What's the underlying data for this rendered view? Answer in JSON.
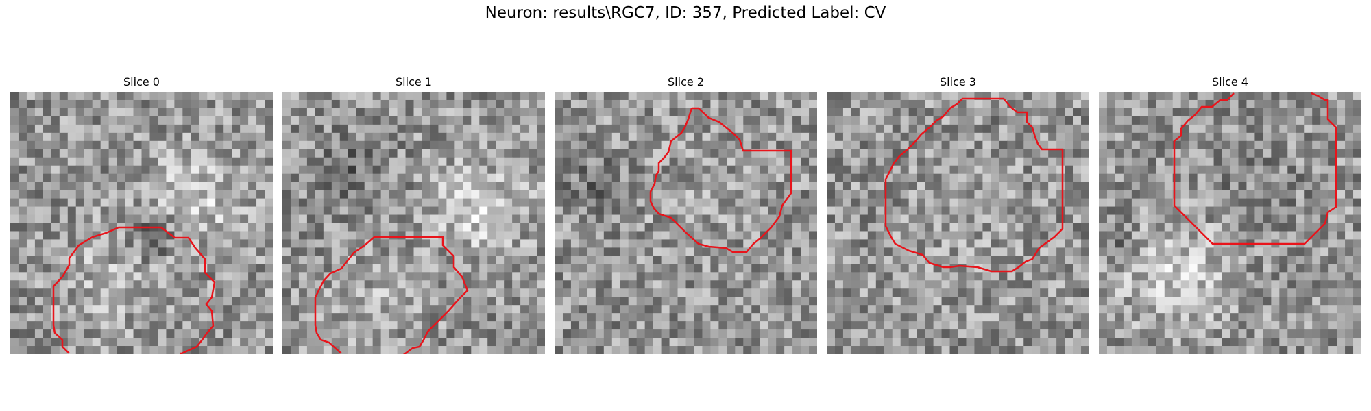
{
  "figure": {
    "title": "Neuron: results\\RGC7, ID: 357, Predicted Label: CV",
    "contour_color": "#e8141b",
    "grid_size": 32,
    "panels": [
      {
        "title": "Slice 0",
        "seed": 11,
        "blobs": [
          [
            0.72,
            0.4,
            0.2,
            45
          ],
          [
            0.35,
            0.72,
            0.2,
            25
          ],
          [
            0.55,
            0.55,
            0.08,
            -55
          ]
        ]
      },
      {
        "title": "Slice 1",
        "seed": 23,
        "blobs": [
          [
            0.75,
            0.45,
            0.18,
            50
          ],
          [
            0.35,
            0.8,
            0.18,
            20
          ],
          [
            0.25,
            0.3,
            0.15,
            -40
          ]
        ]
      },
      {
        "title": "Slice 2",
        "seed": 37,
        "blobs": [
          [
            0.55,
            0.4,
            0.22,
            10
          ],
          [
            0.15,
            0.35,
            0.1,
            -45
          ]
        ]
      },
      {
        "title": "Slice 3",
        "seed": 41,
        "blobs": [
          [
            0.55,
            0.55,
            0.25,
            8
          ]
        ]
      },
      {
        "title": "Slice 4",
        "seed": 53,
        "blobs": [
          [
            0.3,
            0.7,
            0.2,
            55
          ],
          [
            0.6,
            0.35,
            0.22,
            -15
          ],
          [
            0.05,
            0.55,
            0.08,
            -35
          ]
        ]
      }
    ]
  }
}
